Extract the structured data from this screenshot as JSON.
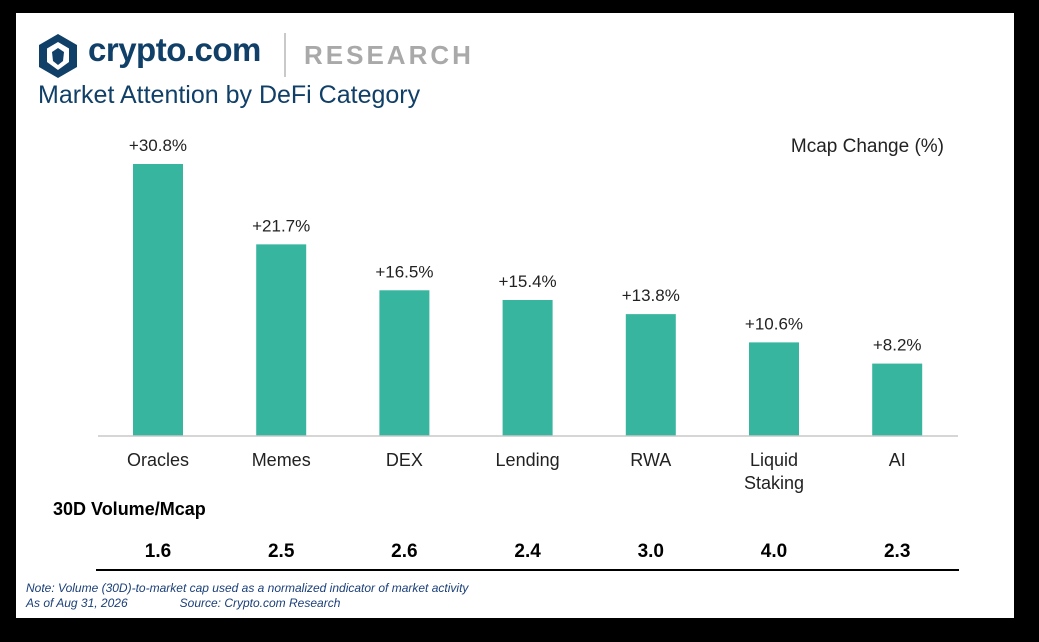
{
  "header": {
    "brand": "crypto.com",
    "section": "RESEARCH",
    "title": "Market Attention by DeFi Category",
    "logo_icon": "crypto-com-lion-shield-icon"
  },
  "colors": {
    "bar": "#38b59e",
    "navy": "#103f68",
    "gray": "#a9a9a9"
  },
  "chart_data": {
    "type": "bar",
    "categories": [
      "Oracles",
      "Memes",
      "DEX",
      "Lending",
      "RWA",
      "Liquid Staking",
      "AI"
    ],
    "category_lines": [
      [
        "Oracles"
      ],
      [
        "Memes"
      ],
      [
        "DEX"
      ],
      [
        "Lending"
      ],
      [
        "RWA"
      ],
      [
        "Liquid",
        "Staking"
      ],
      [
        "AI"
      ]
    ],
    "values": [
      30.8,
      21.7,
      16.5,
      15.4,
      13.8,
      10.6,
      8.2
    ],
    "data_labels": [
      "+30.8%",
      "+21.7%",
      "+16.5%",
      "+15.4%",
      "+13.8%",
      "+10.6%",
      "+8.2%"
    ],
    "series_label": "Mcap Change (%)",
    "ylim": [
      0,
      30.8
    ],
    "grid": false,
    "legend": "none"
  },
  "volume_table": {
    "title": "30D Volume/Mcap",
    "values": [
      "1.6",
      "2.5",
      "2.6",
      "2.4",
      "3.0",
      "4.0",
      "2.3"
    ]
  },
  "footer": {
    "note": "Note: Volume (30D)-to-market cap used as a normalized indicator of market activity",
    "as_of": "As of Aug 31, 2026",
    "source": "Source: Crypto.com Research"
  }
}
